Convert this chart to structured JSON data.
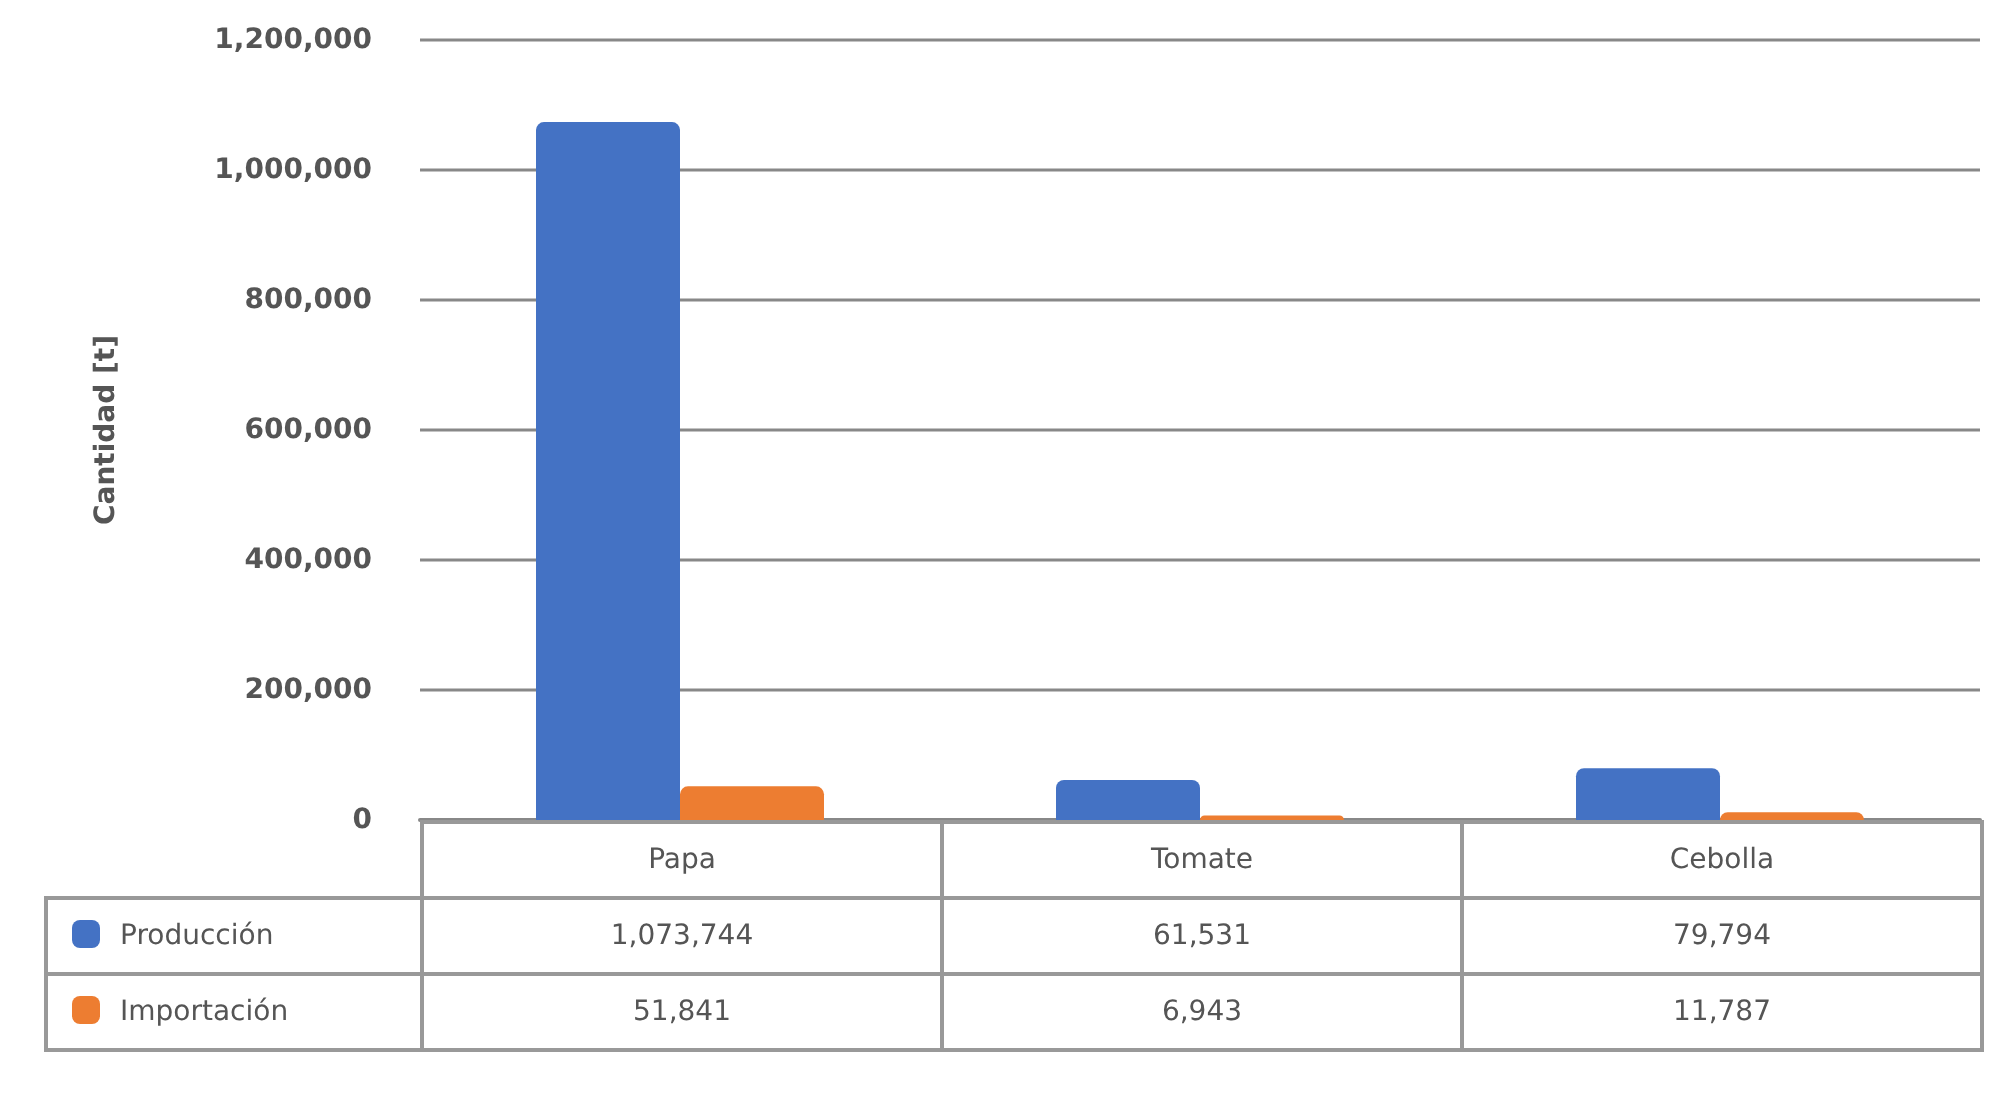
{
  "chart_data": {
    "type": "bar",
    "ylabel": "Cantidad [t]",
    "categories": [
      "Papa",
      "Tomate",
      "Cebolla"
    ],
    "series": [
      {
        "name": "Producción",
        "color": "#4472c4",
        "values": [
          1073744,
          61531,
          79794
        ],
        "value_labels": [
          "1,073,744",
          "61,531",
          "79,794"
        ]
      },
      {
        "name": "Importación",
        "color": "#ed7d31",
        "values": [
          51841,
          6943,
          11787
        ],
        "value_labels": [
          "51,841",
          "6,943",
          "11,787"
        ]
      }
    ],
    "ylim": [
      0,
      1200000
    ],
    "yticks": [
      0,
      {
        "value": 200000,
        "label": "200,000"
      },
      {
        "value": 400000,
        "label": "400,000"
      },
      {
        "value": 600000,
        "label": "600,000"
      },
      {
        "value": 800000,
        "label": "800,000"
      },
      {
        "value": 1000000,
        "label": "1,000,000"
      },
      {
        "value": 1200000,
        "label": "1,200,000"
      }
    ],
    "grid": "y",
    "legend": "bottom"
  }
}
